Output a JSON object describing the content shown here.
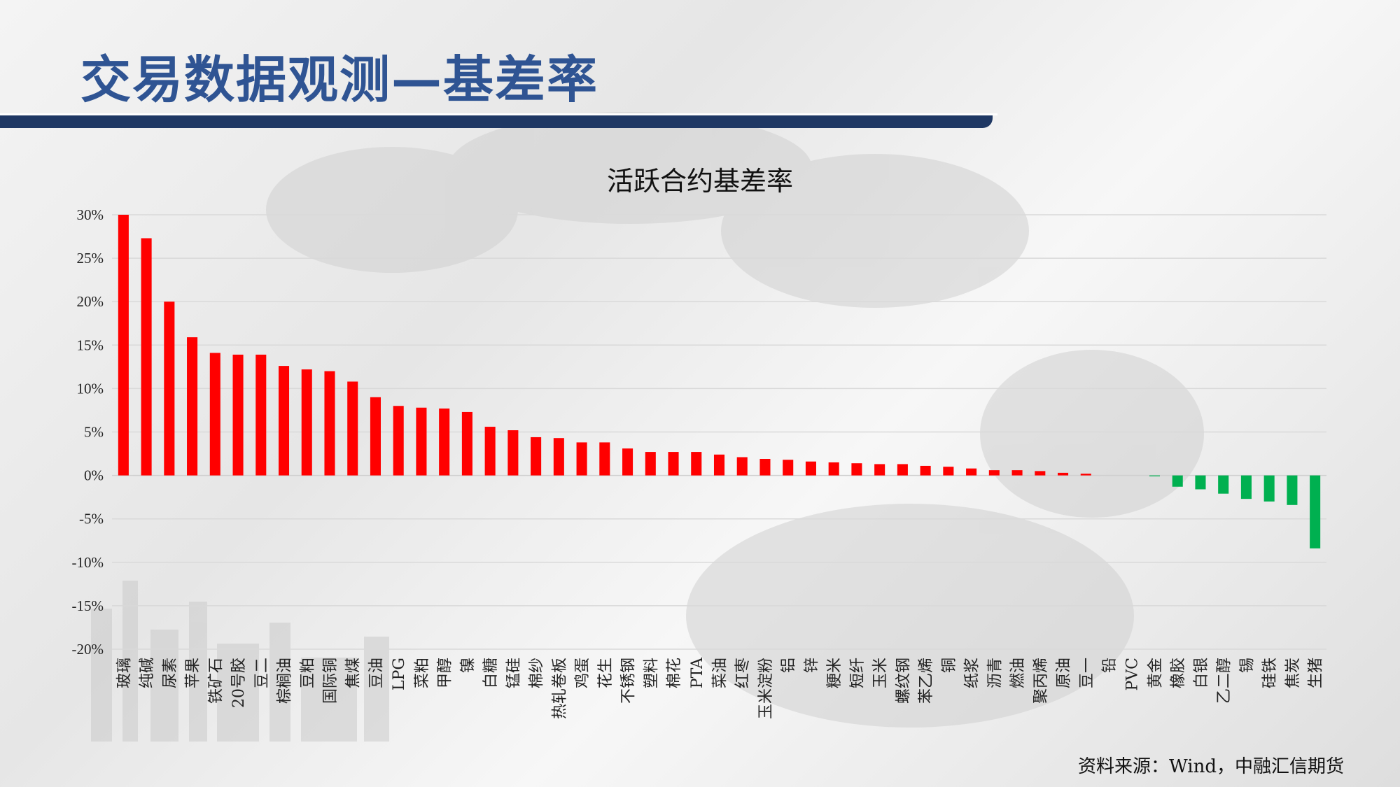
{
  "header": {
    "title": "交易数据观测—基差率"
  },
  "footer": {
    "source": "资料来源：Wind，中融汇信期货"
  },
  "colors": {
    "positive": "#ff0000",
    "negative": "#00b050",
    "title_blue": "#2f5493",
    "bar_navy": "#1f3864"
  },
  "chart_data": {
    "type": "bar",
    "title": "活跃合约基差率",
    "xlabel": "",
    "ylabel": "",
    "ylim": [
      -20,
      30
    ],
    "yticks": [
      30,
      25,
      20,
      15,
      10,
      5,
      0,
      -5,
      -10,
      -15,
      -20
    ],
    "ytick_labels": [
      "30%",
      "25%",
      "20%",
      "15%",
      "10%",
      "5%",
      "0%",
      "-5%",
      "-10%",
      "-15%",
      "-20%"
    ],
    "grid": true,
    "legend": "none",
    "categories": [
      "玻璃",
      "纯碱",
      "尿素",
      "苹果",
      "铁矿石",
      "20号胶",
      "豆二",
      "棕榈油",
      "豆粕",
      "国际铜",
      "焦煤",
      "豆油",
      "LPG",
      "菜粕",
      "甲醇",
      "镍",
      "白糖",
      "锰硅",
      "棉纱",
      "热轧卷板",
      "鸡蛋",
      "花生",
      "不锈钢",
      "塑料",
      "棉花",
      "PTA",
      "菜油",
      "红枣",
      "玉米淀粉",
      "铝",
      "锌",
      "粳米",
      "短纤",
      "玉米",
      "螺纹钢",
      "苯乙烯",
      "铜",
      "纸浆",
      "沥青",
      "燃油",
      "聚丙烯",
      "原油",
      "豆一",
      "铅",
      "PVC",
      "黄金",
      "橡胶",
      "白银",
      "乙二醇",
      "锡",
      "硅铁",
      "焦炭",
      "生猪"
    ],
    "values": [
      30.0,
      27.3,
      20.0,
      15.9,
      14.1,
      13.9,
      13.9,
      12.6,
      12.2,
      12.0,
      10.8,
      9.0,
      8.0,
      7.8,
      7.7,
      7.3,
      5.6,
      5.2,
      4.4,
      4.3,
      3.8,
      3.8,
      3.1,
      2.7,
      2.7,
      2.7,
      2.4,
      2.1,
      1.9,
      1.8,
      1.6,
      1.5,
      1.4,
      1.3,
      1.3,
      1.1,
      1.0,
      0.8,
      0.6,
      0.6,
      0.5,
      0.3,
      0.2,
      0.0,
      0.0,
      -0.1,
      -1.3,
      -1.6,
      -2.1,
      -2.7,
      -3.0,
      -3.4,
      -8.4
    ]
  }
}
